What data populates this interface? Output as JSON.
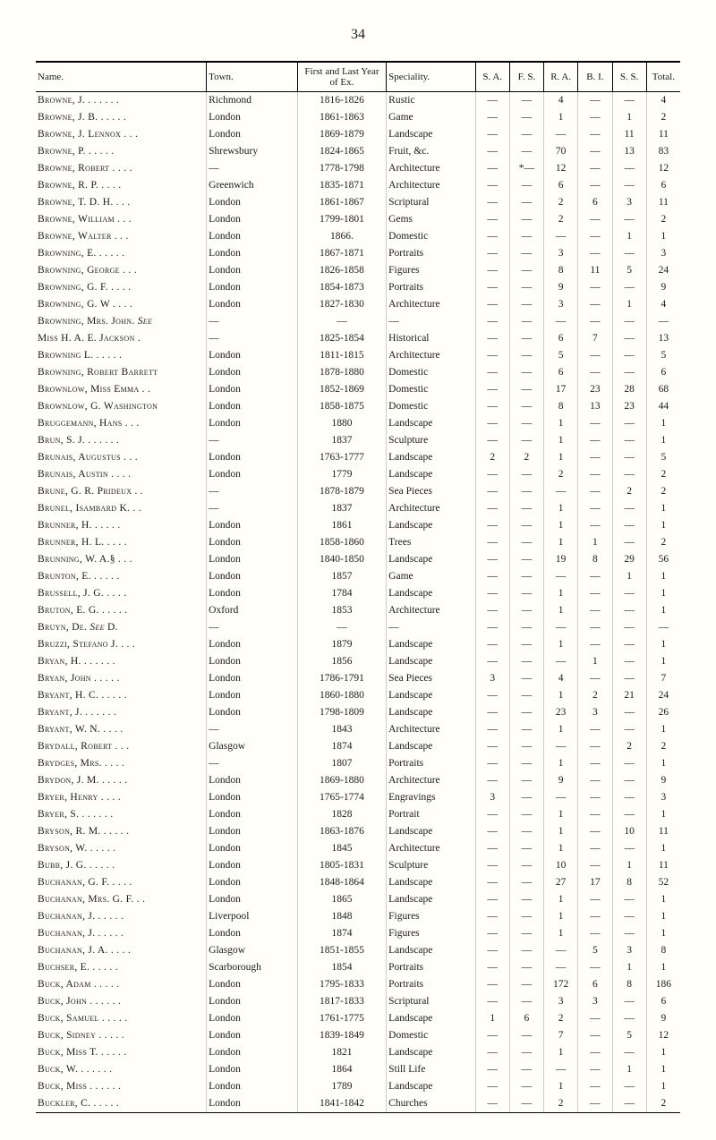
{
  "pageNumber": "34",
  "headers": {
    "name": "Name.",
    "town": "Town.",
    "year": "First and Last Year of Ex.",
    "spec": "Speciality.",
    "sa": "S. A.",
    "fs": "F. S.",
    "ra": "R. A.",
    "bi": "B. I.",
    "ss": "S. S.",
    "total": "Total."
  },
  "rows": [
    {
      "name": "Browne, J. . . . . . .",
      "town": "Richmond",
      "year": "1816-1826",
      "spec": "Rustic",
      "sa": "—",
      "fs": "—",
      "ra": "4",
      "bi": "—",
      "ss": "—",
      "total": "4"
    },
    {
      "name": "Browne, J. B. . . . . .",
      "town": "London",
      "year": "1861-1863",
      "spec": "Game",
      "sa": "—",
      "fs": "—",
      "ra": "1",
      "bi": "—",
      "ss": "1",
      "total": "2"
    },
    {
      "name": "Browne, J. Lennox . . .",
      "town": "London",
      "year": "1869-1879",
      "spec": "Landscape",
      "sa": "—",
      "fs": "—",
      "ra": "—",
      "bi": "—",
      "ss": "11",
      "total": "11"
    },
    {
      "name": "Browne, P. . . . . .",
      "town": "Shrewsbury",
      "year": "1824-1865",
      "spec": "Fruit, &c.",
      "sa": "—",
      "fs": "—",
      "ra": "70",
      "bi": "—",
      "ss": "13",
      "total": "83"
    },
    {
      "name": "Browne, Robert . . . .",
      "town": "—",
      "year": "1778-1798",
      "spec": "Architecture",
      "sa": "—",
      "fs": "*—",
      "ra": "12",
      "bi": "—",
      "ss": "—",
      "total": "12"
    },
    {
      "name": "Browne, R. P. . . . .",
      "town": "Greenwich",
      "year": "1835-1871",
      "spec": "Architecture",
      "sa": "—",
      "fs": "—",
      "ra": "6",
      "bi": "—",
      "ss": "—",
      "total": "6"
    },
    {
      "name": "Browne, T. D. H. . . .",
      "town": "London",
      "year": "1861-1867",
      "spec": "Scriptural",
      "sa": "—",
      "fs": "—",
      "ra": "2",
      "bi": "6",
      "ss": "3",
      "total": "11"
    },
    {
      "name": "Browne, William . . .",
      "town": "London",
      "year": "1799-1801",
      "spec": "Gems",
      "sa": "—",
      "fs": "—",
      "ra": "2",
      "bi": "—",
      "ss": "—",
      "total": "2"
    },
    {
      "name": "Browne, Walter . . .",
      "town": "London",
      "year": "1866.",
      "spec": "Domestic",
      "sa": "—",
      "fs": "—",
      "ra": "—",
      "bi": "—",
      "ss": "1",
      "total": "1"
    },
    {
      "name": "Browning, E. . . . . .",
      "town": "London",
      "year": "1867-1871",
      "spec": "Portraits",
      "sa": "—",
      "fs": "—",
      "ra": "3",
      "bi": "—",
      "ss": "—",
      "total": "3"
    },
    {
      "name": "Browning, George . . .",
      "town": "London",
      "year": "1826-1858",
      "spec": "Figures",
      "sa": "—",
      "fs": "—",
      "ra": "8",
      "bi": "11",
      "ss": "5",
      "total": "24"
    },
    {
      "name": "Browning, G. F. . . . .",
      "town": "London",
      "year": "1854-1873",
      "spec": "Portraits",
      "sa": "—",
      "fs": "—",
      "ra": "9",
      "bi": "—",
      "ss": "—",
      "total": "9"
    },
    {
      "name": "Browning, G. W . . . .",
      "town": "London",
      "year": "1827-1830",
      "spec": "Architecture",
      "sa": "—",
      "fs": "—",
      "ra": "3",
      "bi": "—",
      "ss": "1",
      "total": "4"
    },
    {
      "name": "Browning, Mrs. John. See",
      "town": "—",
      "year": "—",
      "spec": "—",
      "sa": "—",
      "fs": "—",
      "ra": "—",
      "bi": "—",
      "ss": "—",
      "total": "—",
      "italic": "See"
    },
    {
      "name": " Miss H. A. E. Jackson .",
      "town": "—",
      "year": "1825-1854",
      "spec": "Historical",
      "sa": "—",
      "fs": "—",
      "ra": "6",
      "bi": "7",
      "ss": "—",
      "total": "13"
    },
    {
      "name": "Browning L. . . . . .",
      "town": "London",
      "year": "1811-1815",
      "spec": "Architecture",
      "sa": "—",
      "fs": "—",
      "ra": "5",
      "bi": "—",
      "ss": "—",
      "total": "5"
    },
    {
      "name": "Browning, Robert Barrett",
      "town": "London",
      "year": "1878-1880",
      "spec": "Domestic",
      "sa": "—",
      "fs": "—",
      "ra": "6",
      "bi": "—",
      "ss": "—",
      "total": "6"
    },
    {
      "name": "Brownlow, Miss Emma . .",
      "town": "London",
      "year": "1852-1869",
      "spec": "Domestic",
      "sa": "—",
      "fs": "—",
      "ra": "17",
      "bi": "23",
      "ss": "28",
      "total": "68"
    },
    {
      "name": "Brownlow, G. Washington",
      "town": "London",
      "year": "1858-1875",
      "spec": "Domestic",
      "sa": "—",
      "fs": "—",
      "ra": "8",
      "bi": "13",
      "ss": "23",
      "total": "44"
    },
    {
      "name": "Bruggemann, Hans . . .",
      "town": "London",
      "year": "1880",
      "spec": "Landscape",
      "sa": "—",
      "fs": "—",
      "ra": "1",
      "bi": "—",
      "ss": "—",
      "total": "1"
    },
    {
      "name": "Brun, S. J. . . . . . .",
      "town": "—",
      "year": "1837",
      "spec": "Sculpture",
      "sa": "—",
      "fs": "—",
      "ra": "1",
      "bi": "—",
      "ss": "—",
      "total": "1"
    },
    {
      "name": "Brunais, Augustus . . .",
      "town": "London",
      "year": "1763-1777",
      "spec": "Landscape",
      "sa": "2",
      "fs": "2",
      "ra": "1",
      "bi": "—",
      "ss": "—",
      "total": "5"
    },
    {
      "name": "Brunais, Austin . . . .",
      "town": "London",
      "year": "1779",
      "spec": "Landscape",
      "sa": "—",
      "fs": "—",
      "ra": "2",
      "bi": "—",
      "ss": "—",
      "total": "2"
    },
    {
      "name": "Brune, G. R. Prideux . .",
      "town": "—",
      "year": "1878-1879",
      "spec": "Sea Pieces",
      "sa": "—",
      "fs": "—",
      "ra": "—",
      "bi": "—",
      "ss": "2",
      "total": "2"
    },
    {
      "name": "Brunel, Isambard K. . .",
      "town": "—",
      "year": "1837",
      "spec": "Architecture",
      "sa": "—",
      "fs": "—",
      "ra": "1",
      "bi": "—",
      "ss": "—",
      "total": "1"
    },
    {
      "name": "Brunner, H. . . . . .",
      "town": "London",
      "year": "1861",
      "spec": "Landscape",
      "sa": "—",
      "fs": "—",
      "ra": "1",
      "bi": "—",
      "ss": "—",
      "total": "1"
    },
    {
      "name": "Brunner, H. L. . . . .",
      "town": "London",
      "year": "1858-1860",
      "spec": "Trees",
      "sa": "—",
      "fs": "—",
      "ra": "1",
      "bi": "1",
      "ss": "—",
      "total": "2"
    },
    {
      "name": "Brunning, W. A.§ . . .",
      "town": "London",
      "year": "1840-1850",
      "spec": "Landscape",
      "sa": "—",
      "fs": "—",
      "ra": "19",
      "bi": "8",
      "ss": "29",
      "total": "56"
    },
    {
      "name": "Brunton, E. . . . . .",
      "town": "London",
      "year": "1857",
      "spec": "Game",
      "sa": "—",
      "fs": "—",
      "ra": "—",
      "bi": "—",
      "ss": "1",
      "total": "1"
    },
    {
      "name": "Brussell, J. G. . . . .",
      "town": "London",
      "year": "1784",
      "spec": "Landscape",
      "sa": "—",
      "fs": "—",
      "ra": "1",
      "bi": "—",
      "ss": "—",
      "total": "1"
    },
    {
      "name": "Bruton, E. G. . . . . .",
      "town": "Oxford",
      "year": "1853",
      "spec": "Architecture",
      "sa": "—",
      "fs": "—",
      "ra": "1",
      "bi": "—",
      "ss": "—",
      "total": "1"
    },
    {
      "name": "Bruyn, De. See D.",
      "town": "—",
      "year": "—",
      "spec": "—",
      "sa": "—",
      "fs": "—",
      "ra": "—",
      "bi": "—",
      "ss": "—",
      "total": "—",
      "italic": "See"
    },
    {
      "name": "Bruzzi, Stefano J. . . .",
      "town": "London",
      "year": "1879",
      "spec": "Landscape",
      "sa": "—",
      "fs": "—",
      "ra": "1",
      "bi": "—",
      "ss": "—",
      "total": "1"
    },
    {
      "name": "Bryan, H. . . . . . .",
      "town": "London",
      "year": "1856",
      "spec": "Landscape",
      "sa": "—",
      "fs": "—",
      "ra": "—",
      "bi": "1",
      "ss": "—",
      "total": "1"
    },
    {
      "name": "Bryan, John . . . . .",
      "town": "London",
      "year": "1786-1791",
      "spec": "Sea Pieces",
      "sa": "3",
      "fs": "—",
      "ra": "4",
      "bi": "—",
      "ss": "—",
      "total": "7"
    },
    {
      "name": "Bryant, H. C. . . . . .",
      "town": "London",
      "year": "1860-1880",
      "spec": "Landscape",
      "sa": "—",
      "fs": "—",
      "ra": "1",
      "bi": "2",
      "ss": "21",
      "total": "24"
    },
    {
      "name": "Bryant, J. . . . . . .",
      "town": "London",
      "year": "1798-1809",
      "spec": "Landscape",
      "sa": "—",
      "fs": "—",
      "ra": "23",
      "bi": "3",
      "ss": "—",
      "total": "26"
    },
    {
      "name": "Bryant, W. N. . . . .",
      "town": "—",
      "year": "1843",
      "spec": "Architecture",
      "sa": "—",
      "fs": "—",
      "ra": "1",
      "bi": "—",
      "ss": "—",
      "total": "1"
    },
    {
      "name": "Brydall, Robert . . .",
      "town": "Glasgow",
      "year": "1874",
      "spec": "Landscape",
      "sa": "—",
      "fs": "—",
      "ra": "—",
      "bi": "—",
      "ss": "2",
      "total": "2"
    },
    {
      "name": "Brydges, Mrs. . . . .",
      "town": "—",
      "year": "1807",
      "spec": "Portraits",
      "sa": "—",
      "fs": "—",
      "ra": "1",
      "bi": "—",
      "ss": "—",
      "total": "1"
    },
    {
      "name": "Brydon, J. M. . . . . .",
      "town": "London",
      "year": "1869-1880",
      "spec": "Architecture",
      "sa": "—",
      "fs": "—",
      "ra": "9",
      "bi": "—",
      "ss": "—",
      "total": "9"
    },
    {
      "name": "Bryer, Henry . . . .",
      "town": "London",
      "year": "1765-1774",
      "spec": "Engravings",
      "sa": "3",
      "fs": "—",
      "ra": "—",
      "bi": "—",
      "ss": "—",
      "total": "3"
    },
    {
      "name": "Bryer, S. . . . . . .",
      "town": "London",
      "year": "1828",
      "spec": "Portrait",
      "sa": "—",
      "fs": "—",
      "ra": "1",
      "bi": "—",
      "ss": "—",
      "total": "1"
    },
    {
      "name": "Bryson, R. M. . . . . .",
      "town": "London",
      "year": "1863-1876",
      "spec": "Landscape",
      "sa": "—",
      "fs": "—",
      "ra": "1",
      "bi": "—",
      "ss": "10",
      "total": "11"
    },
    {
      "name": "Bryson, W. . . . . .",
      "town": "London",
      "year": "1845",
      "spec": "Architecture",
      "sa": "—",
      "fs": "—",
      "ra": "1",
      "bi": "—",
      "ss": "—",
      "total": "1"
    },
    {
      "name": "Bubb, J. G. . . . . .",
      "town": "London",
      "year": "1805-1831",
      "spec": "Sculpture",
      "sa": "—",
      "fs": "—",
      "ra": "10",
      "bi": "—",
      "ss": "1",
      "total": "11"
    },
    {
      "name": "Buchanan, G. F. . . . .",
      "town": "London",
      "year": "1848-1864",
      "spec": "Landscape",
      "sa": "—",
      "fs": "—",
      "ra": "27",
      "bi": "17",
      "ss": "8",
      "total": "52"
    },
    {
      "name": "Buchanan, Mrs. G. F. . .",
      "town": "London",
      "year": "1865",
      "spec": "Landscape",
      "sa": "—",
      "fs": "—",
      "ra": "1",
      "bi": "—",
      "ss": "—",
      "total": "1"
    },
    {
      "name": "Buchanan, J. . . . . .",
      "town": "Liverpool",
      "year": "1848",
      "spec": "Figures",
      "sa": "—",
      "fs": "—",
      "ra": "1",
      "bi": "—",
      "ss": "—",
      "total": "1"
    },
    {
      "name": "Buchanan, J. . . . . .",
      "town": "London",
      "year": "1874",
      "spec": "Figures",
      "sa": "—",
      "fs": "—",
      "ra": "1",
      "bi": "—",
      "ss": "—",
      "total": "1"
    },
    {
      "name": "Buchanan, J. A. . . . .",
      "town": "Glasgow",
      "year": "1851-1855",
      "spec": "Landscape",
      "sa": "—",
      "fs": "—",
      "ra": "—",
      "bi": "5",
      "ss": "3",
      "total": "8"
    },
    {
      "name": "Buchser, E. . . . . .",
      "town": "Scarborough",
      "year": "1854",
      "spec": "Portraits",
      "sa": "—",
      "fs": "—",
      "ra": "—",
      "bi": "—",
      "ss": "1",
      "total": "1"
    },
    {
      "name": "Buck, Adam . . . . .",
      "town": "London",
      "year": "1795-1833",
      "spec": "Portraits",
      "sa": "—",
      "fs": "—",
      "ra": "172",
      "bi": "6",
      "ss": "8",
      "total": "186"
    },
    {
      "name": "Buck, John . . . . . .",
      "town": "London",
      "year": "1817-1833",
      "spec": "Scriptural",
      "sa": "—",
      "fs": "—",
      "ra": "3",
      "bi": "3",
      "ss": "—",
      "total": "6"
    },
    {
      "name": "Buck, Samuel . . . . .",
      "town": "London",
      "year": "1761-1775",
      "spec": "Landscape",
      "sa": "1",
      "fs": "6",
      "ra": "2",
      "bi": "—",
      "ss": "—",
      "total": "9"
    },
    {
      "name": "Buck, Sidney . . . . .",
      "town": "London",
      "year": "1839-1849",
      "spec": "Domestic",
      "sa": "—",
      "fs": "—",
      "ra": "7",
      "bi": "—",
      "ss": "5",
      "total": "12"
    },
    {
      "name": "Buck, Miss T. . . . . .",
      "town": "London",
      "year": "1821",
      "spec": "Landscape",
      "sa": "—",
      "fs": "—",
      "ra": "1",
      "bi": "—",
      "ss": "—",
      "total": "1"
    },
    {
      "name": "Buck, W. . . . . . .",
      "town": "London",
      "year": "1864",
      "spec": "Still Life",
      "sa": "—",
      "fs": "—",
      "ra": "—",
      "bi": "—",
      "ss": "1",
      "total": "1"
    },
    {
      "name": "Buck, Miss . . . . . .",
      "town": "London",
      "year": "1789",
      "spec": "Landscape",
      "sa": "—",
      "fs": "—",
      "ra": "1",
      "bi": "—",
      "ss": "—",
      "total": "1"
    },
    {
      "name": "Buckler, C. . . . . .",
      "town": "London",
      "year": "1841-1842",
      "spec": "Churches",
      "sa": "—",
      "fs": "—",
      "ra": "2",
      "bi": "—",
      "ss": "—",
      "total": "2"
    }
  ]
}
